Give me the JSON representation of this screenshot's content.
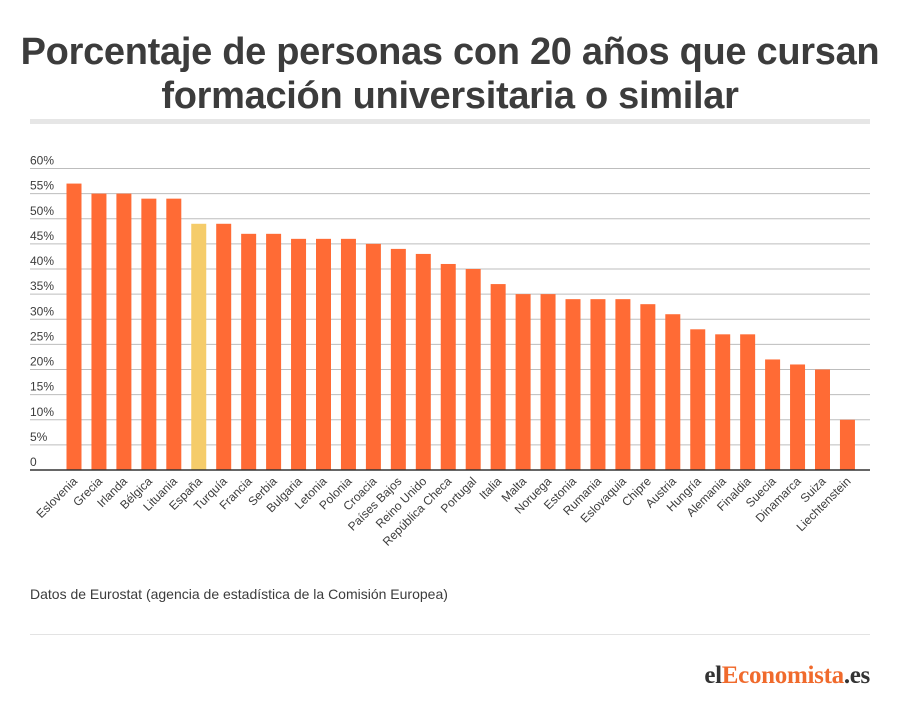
{
  "header": {
    "title_line1": "Porcentaje de personas con 20 años que cursan",
    "title_line2": "formación universitaria o similar"
  },
  "footer": {
    "source": "Datos de Eurostat (agencia de estadística de la Comisión Europea)",
    "logo_part1": "el",
    "logo_part2": "Economista",
    "logo_part3": ".es"
  },
  "colors": {
    "bar": "#ff6b35",
    "highlight": "#f5cc6a",
    "grid": "#bdbdbd",
    "axis": "#333333",
    "text": "#3c3c3c",
    "logo_accent": "#f06a2c"
  },
  "chart_data": {
    "type": "bar",
    "categories": [
      "Eslovenia",
      "Grecia",
      "Irlanda",
      "Bélgica",
      "Lituania",
      "España",
      "Turquía",
      "Francia",
      "Serbia",
      "Bulgaria",
      "Letonia",
      "Polonia",
      "Croacia",
      "Países Bajos",
      "Reino Unido",
      "República Checa",
      "Portugal",
      "Italia",
      "Malta",
      "Noruega",
      "Estonia",
      "Rumania",
      "Eslovaquia",
      "Chipre",
      "Austria",
      "Hungría",
      "Alemania",
      "Finaldia",
      "Suecia",
      "Dinamarca",
      "Suiza",
      "Liechtenstein"
    ],
    "values": [
      57,
      55,
      55,
      54,
      54,
      49,
      49,
      47,
      47,
      46,
      46,
      46,
      45,
      44,
      43,
      41,
      40,
      37,
      35,
      35,
      34,
      34,
      34,
      33,
      31,
      28,
      27,
      27,
      22,
      21,
      20,
      10
    ],
    "highlight_category": "España",
    "yticks": [
      "0",
      "5%",
      "10%",
      "15%",
      "20%",
      "25%",
      "30%",
      "35%",
      "40%",
      "45%",
      "50%",
      "55%",
      "60%"
    ],
    "ylim": [
      0,
      60
    ],
    "grid": true
  }
}
